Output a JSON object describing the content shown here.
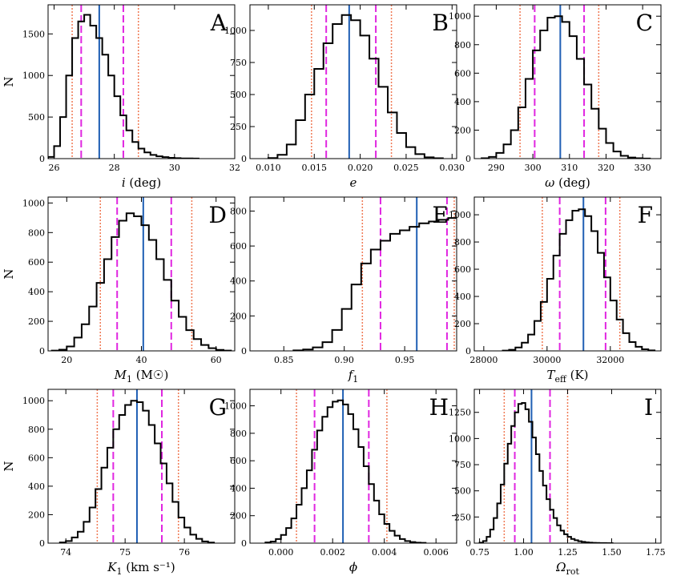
{
  "figure": {
    "ylabel": "N"
  },
  "colors": {
    "hist": "#000000",
    "median": "#1f5fb4",
    "sigma1": "#e026e0",
    "sigma2": "#f07a55"
  },
  "chart_data": [
    {
      "id": "A",
      "letter": "A",
      "type": "histogram",
      "xlabel_main": "i",
      "xlabel_rest": " (deg)",
      "xlim": [
        25.8,
        32
      ],
      "ylim": [
        0,
        1850
      ],
      "xticks": [
        26,
        28,
        30,
        32
      ],
      "xticklabels": [
        "26",
        "28",
        "30",
        "32"
      ],
      "yticks": [
        0,
        500,
        1000,
        1500
      ],
      "yticklabels": [
        "0",
        "500",
        "1000",
        "1500"
      ],
      "x": [
        25.9,
        26.1,
        26.3,
        26.5,
        26.7,
        26.9,
        27.1,
        27.3,
        27.5,
        27.7,
        27.9,
        28.1,
        28.3,
        28.5,
        28.7,
        28.9,
        29.1,
        29.3,
        29.5,
        29.7,
        29.9,
        30.1,
        30.3,
        30.5,
        30.7
      ],
      "y": [
        20,
        150,
        500,
        1000,
        1450,
        1650,
        1730,
        1600,
        1450,
        1250,
        1000,
        750,
        520,
        340,
        200,
        120,
        75,
        45,
        28,
        18,
        10,
        6,
        3,
        2,
        1
      ],
      "median": 27.5,
      "sigma1": [
        26.9,
        28.3
      ],
      "sigma2": [
        26.6,
        28.8
      ]
    },
    {
      "id": "B",
      "letter": "B",
      "type": "histogram",
      "xlabel_main": "e",
      "xlabel_rest": "",
      "xlim": [
        0.008,
        0.0305
      ],
      "ylim": [
        0,
        1200
      ],
      "xticks": [
        0.01,
        0.015,
        0.02,
        0.025,
        0.03
      ],
      "xticklabels": [
        "0.010",
        "0.015",
        "0.020",
        "0.025",
        "0.030"
      ],
      "yticks": [
        0,
        250,
        500,
        750,
        1000
      ],
      "yticklabels": [
        "0",
        "250",
        "500",
        "750",
        "1000"
      ],
      "x": [
        0.0105,
        0.0115,
        0.0125,
        0.0135,
        0.0145,
        0.0155,
        0.0165,
        0.0175,
        0.0185,
        0.0195,
        0.0205,
        0.0215,
        0.0225,
        0.0235,
        0.0245,
        0.0255,
        0.0265,
        0.0275,
        0.0285
      ],
      "y": [
        5,
        30,
        110,
        300,
        500,
        700,
        900,
        1050,
        1120,
        1080,
        960,
        780,
        560,
        360,
        200,
        90,
        35,
        10,
        3
      ],
      "median": 0.0188,
      "sigma1": [
        0.0163,
        0.0217
      ],
      "sigma2": [
        0.0147,
        0.0234
      ]
    },
    {
      "id": "C",
      "letter": "C",
      "type": "histogram",
      "xlabel_main": "ω",
      "xlabel_rest": " (deg)",
      "xlim": [
        284,
        335
      ],
      "ylim": [
        0,
        1080
      ],
      "xticks": [
        290,
        300,
        310,
        320,
        330
      ],
      "xticklabels": [
        "290",
        "300",
        "310",
        "320",
        "330"
      ],
      "yticks": [
        0,
        200,
        400,
        600,
        800,
        1000
      ],
      "yticklabels": [
        "0",
        "200",
        "400",
        "600",
        "800",
        "1000"
      ],
      "x": [
        287,
        289,
        291,
        293,
        295,
        297,
        299,
        301,
        303,
        305,
        307,
        309,
        311,
        313,
        315,
        317,
        319,
        321,
        323,
        325,
        327,
        329,
        331
      ],
      "y": [
        3,
        12,
        40,
        100,
        200,
        360,
        560,
        760,
        900,
        990,
        1000,
        960,
        860,
        700,
        520,
        350,
        210,
        110,
        50,
        20,
        8,
        3,
        1
      ],
      "median": 307.5,
      "sigma1": [
        300.5,
        314
      ],
      "sigma2": [
        296.5,
        318
      ]
    },
    {
      "id": "D",
      "letter": "D",
      "type": "histogram",
      "xlabel_main": "M",
      "xlabel_sub": "1",
      "xlabel_rest": " (M☉)",
      "xlim": [
        15,
        65
      ],
      "ylim": [
        0,
        1040
      ],
      "xticks": [
        20,
        40,
        60
      ],
      "xticklabels": [
        "20",
        "40",
        "60"
      ],
      "yticks": [
        0,
        200,
        400,
        600,
        800,
        1000
      ],
      "yticklabels": [
        "0",
        "200",
        "400",
        "600",
        "800",
        "1000"
      ],
      "x": [
        17,
        19,
        21,
        23,
        25,
        27,
        29,
        31,
        33,
        35,
        37,
        39,
        41,
        43,
        45,
        47,
        49,
        51,
        53,
        55,
        57,
        59,
        61,
        63
      ],
      "y": [
        2,
        8,
        30,
        90,
        180,
        300,
        460,
        620,
        770,
        880,
        930,
        910,
        850,
        750,
        620,
        480,
        340,
        230,
        140,
        80,
        40,
        18,
        7,
        2
      ],
      "median": 40.5,
      "sigma1": [
        33.5,
        48
      ],
      "sigma2": [
        29,
        53.5
      ]
    },
    {
      "id": "E",
      "letter": "E",
      "type": "histogram",
      "xlabel_main": "f",
      "xlabel_sub": "1",
      "xlabel_rest": "",
      "xlim": [
        0.822,
        0.993
      ],
      "ylim": [
        0,
        880
      ],
      "xticks": [
        0.85,
        0.9,
        0.95
      ],
      "xticklabels": [
        "0.85",
        "0.90",
        "0.95"
      ],
      "yticks": [
        0,
        200,
        400,
        600,
        800
      ],
      "yticklabels": [
        "0",
        "200",
        "400",
        "600",
        "800"
      ],
      "x": [
        0.862,
        0.87,
        0.878,
        0.886,
        0.894,
        0.902,
        0.91,
        0.918,
        0.926,
        0.934,
        0.942,
        0.95,
        0.958,
        0.966,
        0.974,
        0.982,
        0.99
      ],
      "y": [
        3,
        8,
        20,
        50,
        120,
        240,
        380,
        500,
        580,
        630,
        670,
        690,
        710,
        730,
        740,
        750,
        760
      ],
      "median": 0.96,
      "sigma1": [
        0.93,
        0.985
      ],
      "sigma2": [
        0.915,
        0.991
      ]
    },
    {
      "id": "F",
      "letter": "F",
      "type": "histogram",
      "xlabel_main": "T",
      "xlabel_sub": "eff",
      "xlabel_rest": " (K)",
      "xlim": [
        27700,
        33600
      ],
      "ylim": [
        0,
        1130
      ],
      "xticks": [
        28000,
        30000,
        32000
      ],
      "xticklabels": [
        "28000",
        "30000",
        "32000"
      ],
      "yticks": [
        0,
        200,
        400,
        600,
        800,
        1000
      ],
      "yticklabels": [
        "0",
        "200",
        "400",
        "600",
        "800",
        "1000"
      ],
      "x": [
        28700,
        28900,
        29100,
        29300,
        29500,
        29700,
        29900,
        30100,
        30300,
        30500,
        30700,
        30900,
        31100,
        31300,
        31500,
        31700,
        31900,
        32100,
        32300,
        32500,
        32700,
        32900,
        33100,
        33300
      ],
      "y": [
        2,
        8,
        25,
        60,
        120,
        220,
        360,
        530,
        700,
        860,
        960,
        1030,
        1040,
        990,
        880,
        720,
        540,
        370,
        230,
        130,
        65,
        30,
        12,
        4
      ],
      "median": 31150,
      "sigma1": [
        30400,
        31850
      ],
      "sigma2": [
        29850,
        32300
      ]
    },
    {
      "id": "G",
      "letter": "G",
      "type": "histogram",
      "xlabel_main": "K",
      "xlabel_sub": "1",
      "xlabel_rest": " (km s⁻¹)",
      "xlim": [
        73.7,
        76.85
      ],
      "ylim": [
        0,
        1080
      ],
      "xticks": [
        74,
        75,
        76
      ],
      "xticklabels": [
        "74",
        "75",
        "76"
      ],
      "yticks": [
        0,
        200,
        400,
        600,
        800,
        1000
      ],
      "yticklabels": [
        "0",
        "200",
        "400",
        "600",
        "800",
        "1000"
      ],
      "x": [
        73.95,
        74.05,
        74.15,
        74.25,
        74.35,
        74.45,
        74.55,
        74.65,
        74.75,
        74.85,
        74.95,
        75.05,
        75.15,
        75.25,
        75.35,
        75.45,
        75.55,
        75.65,
        75.75,
        75.85,
        75.95,
        76.05,
        76.15,
        76.25,
        76.35,
        76.45
      ],
      "y": [
        5,
        15,
        40,
        80,
        150,
        250,
        380,
        530,
        670,
        800,
        900,
        970,
        1000,
        990,
        930,
        830,
        700,
        560,
        420,
        290,
        180,
        110,
        60,
        30,
        12,
        4
      ],
      "median": 75.2,
      "sigma1": [
        74.8,
        75.62
      ],
      "sigma2": [
        74.53,
        75.9
      ]
    },
    {
      "id": "H",
      "letter": "H",
      "type": "histogram",
      "xlabel_main": "ϕ",
      "xlabel_rest": "",
      "xlim": [
        -0.0012,
        0.0068
      ],
      "ylim": [
        0,
        1120
      ],
      "xticks": [
        0.0,
        0.002,
        0.004,
        0.006
      ],
      "xticklabels": [
        "0.000",
        "0.002",
        "0.004",
        "0.006"
      ],
      "yticks": [
        0,
        200,
        400,
        600,
        800,
        1000
      ],
      "yticklabels": [
        "0",
        "200",
        "400",
        "600",
        "800",
        "1000"
      ],
      "x": [
        -0.0005,
        -0.0003,
        -0.0001,
        0.0001,
        0.0003,
        0.0005,
        0.0007,
        0.0009,
        0.0011,
        0.0013,
        0.0015,
        0.0017,
        0.0019,
        0.0021,
        0.0023,
        0.0025,
        0.0027,
        0.0029,
        0.0031,
        0.0033,
        0.0035,
        0.0037,
        0.0039,
        0.0041,
        0.0043,
        0.0045,
        0.0047,
        0.0049,
        0.0051,
        0.0053,
        0.0055
      ],
      "y": [
        5,
        12,
        30,
        60,
        110,
        180,
        280,
        400,
        530,
        680,
        820,
        920,
        990,
        1030,
        1040,
        1010,
        940,
        830,
        700,
        560,
        430,
        310,
        210,
        140,
        90,
        55,
        30,
        15,
        8,
        4,
        2
      ],
      "median": 0.0024,
      "sigma1": [
        0.0013,
        0.0034
      ],
      "sigma2": [
        0.0006,
        0.0041
      ]
    },
    {
      "id": "I",
      "letter": "I",
      "type": "histogram",
      "xlabel_main": "Ω",
      "xlabel_sub": "rot",
      "xlabel_rest": "",
      "xlim": [
        0.72,
        1.78
      ],
      "ylim": [
        0,
        1470
      ],
      "xticks": [
        0.75,
        1.0,
        1.25,
        1.5,
        1.75
      ],
      "xticklabels": [
        "0.75",
        "1.00",
        "1.25",
        "1.50",
        "1.75"
      ],
      "yticks": [
        0,
        250,
        500,
        750,
        1000,
        1250
      ],
      "yticklabels": [
        "0",
        "250",
        "500",
        "750",
        "1000",
        "1250"
      ],
      "x": [
        0.76,
        0.78,
        0.8,
        0.82,
        0.84,
        0.86,
        0.88,
        0.9,
        0.92,
        0.94,
        0.96,
        0.98,
        1.0,
        1.02,
        1.04,
        1.06,
        1.08,
        1.1,
        1.12,
        1.14,
        1.16,
        1.18,
        1.2,
        1.22,
        1.24,
        1.26,
        1.28,
        1.3,
        1.32,
        1.34,
        1.36,
        1.38,
        1.4,
        1.42,
        1.44,
        1.46,
        1.48,
        1.5
      ],
      "y": [
        5,
        20,
        60,
        130,
        240,
        380,
        560,
        760,
        950,
        1120,
        1250,
        1330,
        1340,
        1280,
        1160,
        1010,
        850,
        690,
        550,
        420,
        320,
        240,
        170,
        120,
        85,
        60,
        40,
        28,
        18,
        12,
        8,
        5,
        3,
        2,
        1,
        1,
        0,
        0
      ],
      "median": 1.045,
      "sigma1": [
        0.95,
        1.15
      ],
      "sigma2": [
        0.89,
        1.25
      ]
    }
  ]
}
